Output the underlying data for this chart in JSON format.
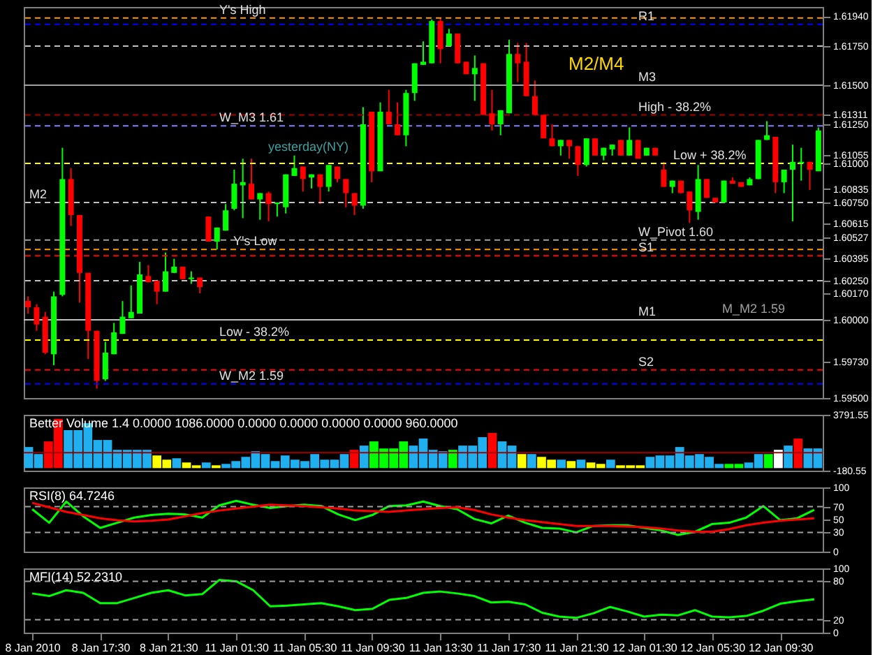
{
  "chart_data": [
    {
      "type": "candlestick",
      "categories": [
        null,
        null,
        null,
        null,
        null,
        null,
        null,
        null,
        null,
        null,
        null,
        null,
        null,
        null,
        null,
        null,
        null,
        null,
        null,
        null,
        null,
        null,
        null,
        null,
        null,
        null,
        null,
        null,
        null,
        null,
        null,
        null,
        null,
        null,
        null,
        null,
        null,
        null,
        null,
        null,
        null,
        null,
        null,
        null,
        null,
        null,
        null,
        null,
        null,
        null,
        null,
        null,
        null,
        null,
        null,
        null,
        null,
        null,
        null,
        null,
        null,
        null,
        null,
        null,
        null,
        null,
        null,
        null,
        null,
        null,
        null,
        null,
        null,
        null,
        null,
        null,
        null,
        null,
        null,
        null,
        null,
        null,
        null,
        null,
        null,
        null,
        null,
        null,
        null,
        null,
        null,
        null,
        null
      ],
      "ohlc": [
        [
          1.6012,
          1.6015,
          1.6004,
          1.6008
        ],
        [
          1.6008,
          1.601,
          1.5993,
          1.5997
        ],
        [
          1.6002,
          1.6005,
          1.5978,
          1.5979
        ],
        [
          1.5978,
          1.6018,
          1.5971,
          1.6015
        ],
        [
          1.6016,
          1.611,
          1.6015,
          1.609
        ],
        [
          1.609,
          1.6097,
          1.606,
          1.6067
        ],
        [
          1.6067,
          1.6067,
          1.6011,
          1.603
        ],
        [
          1.603,
          1.603,
          1.5975,
          1.5993
        ],
        [
          1.5993,
          1.5993,
          1.5956,
          1.5961
        ],
        [
          1.5962,
          1.5986,
          1.5961,
          1.5979
        ],
        [
          1.5978,
          1.5998,
          1.5978,
          1.5992
        ],
        [
          1.5991,
          1.6012,
          1.5991,
          1.6002
        ],
        [
          1.6001,
          1.6022,
          1.6001,
          1.6005
        ],
        [
          1.6004,
          1.6037,
          1.6004,
          1.6029
        ],
        [
          1.6028,
          1.6035,
          1.6024,
          1.6024
        ],
        [
          1.6025,
          1.6025,
          1.601,
          1.6018
        ],
        [
          1.6018,
          1.6043,
          1.6018,
          1.6031
        ],
        [
          1.603,
          1.6039,
          1.603,
          1.6034
        ],
        [
          1.6034,
          1.6034,
          1.6026,
          1.6026
        ],
        [
          1.6026,
          1.6031,
          1.6023,
          1.6027
        ],
        [
          1.6027,
          1.6027,
          1.6017,
          1.6021
        ],
        [
          1.6066,
          1.6066,
          1.605,
          1.605
        ],
        [
          1.605,
          1.6059,
          1.6045,
          1.6059
        ],
        [
          1.6057,
          1.6074,
          1.6057,
          1.607
        ],
        [
          1.6071,
          1.6096,
          1.607,
          1.6087
        ],
        [
          1.6086,
          1.6103,
          1.6065,
          1.6088
        ],
        [
          1.6087,
          1.6103,
          1.6077,
          1.6077
        ],
        [
          1.6077,
          1.6081,
          1.6064,
          1.6081
        ],
        [
          1.6081,
          1.6082,
          1.6063,
          1.6074
        ],
        [
          1.6074,
          1.6075,
          1.6066,
          1.6075
        ],
        [
          1.6072,
          1.6093,
          1.6068,
          1.6093
        ],
        [
          1.6092,
          1.6105,
          1.6092,
          1.6097
        ],
        [
          1.6098,
          1.6098,
          1.6082,
          1.609
        ],
        [
          1.6091,
          1.6093,
          1.6084,
          1.6093
        ],
        [
          1.6093,
          1.6093,
          1.6074,
          1.6085
        ],
        [
          1.6085,
          1.6099,
          1.6082,
          1.6099
        ],
        [
          1.6098,
          1.6098,
          1.6088,
          1.609
        ],
        [
          1.609,
          1.609,
          1.6072,
          1.6081
        ],
        [
          1.6081,
          1.6081,
          1.6067,
          1.6073
        ],
        [
          1.6073,
          1.6136,
          1.6071,
          1.6125
        ],
        [
          1.6133,
          1.6133,
          1.6088,
          1.6095
        ],
        [
          1.6095,
          1.6139,
          1.6095,
          1.6133
        ],
        [
          1.6133,
          1.6147,
          1.6125,
          1.6125
        ],
        [
          1.6125,
          1.6139,
          1.6118,
          1.6118
        ],
        [
          1.6118,
          1.6147,
          1.6111,
          1.6145
        ],
        [
          1.6145,
          1.6164,
          1.614,
          1.6164
        ],
        [
          1.6163,
          1.6178,
          1.6163,
          1.6165
        ],
        [
          1.6164,
          1.6192,
          1.6164,
          1.6191
        ],
        [
          1.6191,
          1.6193,
          1.6164,
          1.6173
        ],
        [
          1.6175,
          1.6186,
          1.6175,
          1.6183
        ],
        [
          1.6183,
          1.6183,
          1.6164,
          1.6164
        ],
        [
          1.6165,
          1.6165,
          1.6157,
          1.6157
        ],
        [
          1.6157,
          1.6169,
          1.614,
          1.6161
        ],
        [
          1.6164,
          1.6164,
          1.6131,
          1.6131
        ],
        [
          1.6132,
          1.6147,
          1.6121,
          1.6125
        ],
        [
          1.6125,
          1.6134,
          1.6118,
          1.6134
        ],
        [
          1.6132,
          1.6179,
          1.6132,
          1.617
        ],
        [
          1.617,
          1.6177,
          1.6152,
          1.6164
        ],
        [
          1.6165,
          1.6177,
          1.6143,
          1.6143
        ],
        [
          1.6143,
          1.6153,
          1.6131,
          1.6131
        ],
        [
          1.6131,
          1.6131,
          1.6116,
          1.6116
        ],
        [
          1.6116,
          1.6125,
          1.6111,
          1.6111
        ],
        [
          1.6111,
          1.6115,
          1.6105,
          1.6115
        ],
        [
          1.6115,
          1.6115,
          1.6103,
          1.6111
        ],
        [
          1.6111,
          1.6111,
          1.6092,
          1.6099
        ],
        [
          1.6099,
          1.6116,
          1.6098,
          1.6116
        ],
        [
          1.6116,
          1.6116,
          1.6105,
          1.6105
        ],
        [
          1.6105,
          1.611,
          1.6102,
          1.611
        ],
        [
          1.6109,
          1.6112,
          1.6105,
          1.6112
        ],
        [
          1.6115,
          1.6115,
          1.6105,
          1.6105
        ],
        [
          1.6105,
          1.6123,
          1.6105,
          1.6115
        ],
        [
          1.6115,
          1.6115,
          1.6103,
          1.6103
        ],
        [
          1.6105,
          1.611,
          1.6105,
          1.611
        ],
        [
          1.611,
          1.611,
          1.6105,
          1.6105
        ],
        [
          1.6096,
          1.6101,
          1.6085,
          1.6085
        ],
        [
          1.6085,
          1.6089,
          1.6081,
          1.6089
        ],
        [
          1.6089,
          1.6089,
          1.6081,
          1.6081
        ],
        [
          1.6082,
          1.6082,
          1.6062,
          1.607
        ],
        [
          1.6069,
          1.6099,
          1.6064,
          1.609
        ],
        [
          1.609,
          1.609,
          1.6078,
          1.6078
        ],
        [
          1.6078,
          1.6078,
          1.6075,
          1.6075
        ],
        [
          1.6075,
          1.6089,
          1.6075,
          1.6089
        ],
        [
          1.6089,
          1.6091,
          1.6087,
          1.6087
        ],
        [
          1.6088,
          1.6088,
          1.6085,
          1.6085
        ],
        [
          1.6086,
          1.6091,
          1.6086,
          1.609
        ],
        [
          1.609,
          1.6115,
          1.609,
          1.6115
        ],
        [
          1.6115,
          1.6127,
          1.6115,
          1.6118
        ],
        [
          1.6117,
          1.6117,
          1.6081,
          1.6088
        ],
        [
          1.6088,
          1.6096,
          1.6081,
          1.6096
        ],
        [
          1.6096,
          1.6112,
          1.6063,
          1.6101
        ],
        [
          1.61,
          1.611,
          1.6089,
          1.6101
        ],
        [
          1.6101,
          1.6101,
          1.6083,
          1.6096
        ],
        [
          1.6095,
          1.6123,
          1.6095,
          1.6121
        ]
      ],
      "colors": [
        "#ff0000",
        "#ff0000",
        "#ff0000",
        "#00ff00",
        "#00ff00",
        "#ff0000",
        "#ff0000",
        "#ff0000",
        "#ff0000",
        "#00ff00",
        "#00ff00",
        "#00ff00",
        "#00ff00",
        "#00ff00",
        "#ff0000",
        "#ff0000",
        "#00ff00",
        "#00ff00",
        "#ff0000",
        "#00ff00",
        "#ff0000",
        "#ff0000",
        "#00ff00",
        "#00ff00",
        "#00ff00",
        "#00ff00",
        "#ff0000",
        "#00ff00",
        "#ff0000",
        "#00ff00",
        "#00ff00",
        "#00ff00",
        "#ff0000",
        "#00ff00",
        "#ff0000",
        "#00ff00",
        "#ff0000",
        "#ff0000",
        "#ff0000",
        "#00ff00",
        "#ff0000",
        "#00ff00",
        "#ff0000",
        "#ff0000",
        "#00ff00",
        "#00ff00",
        "#00ff00",
        "#00ff00",
        "#ff0000",
        "#00ff00",
        "#ff0000",
        "#ff0000",
        "#00ff00",
        "#ff0000",
        "#ff0000",
        "#00ff00",
        "#00ff00",
        "#ff0000",
        "#ff0000",
        "#ff0000",
        "#ff0000",
        "#ff0000",
        "#00ff00",
        "#ff0000",
        "#ff0000",
        "#00ff00",
        "#ff0000",
        "#00ff00",
        "#00ff00",
        "#ff0000",
        "#00ff00",
        "#ff0000",
        "#00ff00",
        "#ff0000",
        "#ff0000",
        "#00ff00",
        "#ff0000",
        "#ff0000",
        "#00ff00",
        "#ff0000",
        "#ff0000",
        "#00ff00",
        "#ff0000",
        "#ff0000",
        "#00ff00",
        "#00ff00",
        "#00ff00",
        "#ff0000",
        "#00ff00",
        "#00ff00",
        "#00ff00",
        "#ff0000",
        "#00ff00"
      ],
      "ylim": [
        1.595,
        1.62
      ],
      "yticks": [
        {
          "value": 1.6194,
          "label": "1.61940"
        },
        {
          "value": 1.6175,
          "label": "1.61750"
        },
        {
          "value": 1.615,
          "label": "1.61500"
        },
        {
          "value": 1.61311,
          "label": "1.61311"
        },
        {
          "value": 1.6125,
          "label": "1.61250"
        },
        {
          "value": 1.61055,
          "label": "1.61055"
        },
        {
          "value": 1.61,
          "label": "1.61000"
        },
        {
          "value": 1.60835,
          "label": "1.60835"
        },
        {
          "value": 1.6075,
          "label": "1.60750"
        },
        {
          "value": 1.60615,
          "label": "1.60615"
        },
        {
          "value": 1.60527,
          "label": "1.60527"
        },
        {
          "value": 1.60395,
          "label": "1.60395"
        },
        {
          "value": 1.6025,
          "label": "1.60250"
        },
        {
          "value": 1.6017,
          "label": "1.60170"
        },
        {
          "value": 1.6,
          "label": "1.60000"
        },
        {
          "value": 1.5973,
          "label": "1.59730"
        },
        {
          "value": 1.595,
          "label": "1.59500"
        }
      ],
      "ref_lines": [
        {
          "axis": "y",
          "value": 1.6193,
          "label": "Y's High",
          "color": "#ff9900",
          "line_style": "dashed"
        },
        {
          "axis": "y",
          "value": 1.6189,
          "label": "R1",
          "color": "#0000ff",
          "line_style": "dashed"
        },
        {
          "axis": "y",
          "value": 1.6175,
          "label": null,
          "color": "#c0c0c0",
          "line_style": "dashed"
        },
        {
          "axis": "y",
          "value": 1.615,
          "label": "M3",
          "color": "#a0a0a0",
          "line_style": "solid"
        },
        {
          "axis": "y",
          "value": 1.6131,
          "label": "High - 38.2%",
          "color": "#a00000",
          "line_style": "dashed"
        },
        {
          "axis": "y",
          "value": 1.6124,
          "label": "W_M3 1.61",
          "color": "#8080ff",
          "line_style": "dashed"
        },
        {
          "axis": "y",
          "value": 1.61,
          "label": "Low + 38.2%",
          "color": "#ffff00",
          "line_style": "dashed"
        },
        {
          "axis": "y",
          "value": 1.6075,
          "label": "M2",
          "color": "#c0c0c0",
          "line_style": "dashed"
        },
        {
          "axis": "y",
          "value": 1.6051,
          "label": "W_Pivot 1.60",
          "color": "#a0a0a0",
          "line_style": "dashed"
        },
        {
          "axis": "y",
          "value": 1.6045,
          "label": "Y's Low",
          "color": "#ff9900",
          "line_style": "dashed"
        },
        {
          "axis": "y",
          "value": 1.6041,
          "label": "S1",
          "color": "#ff0000",
          "line_style": "dashed"
        },
        {
          "axis": "y",
          "value": 1.6025,
          "label": null,
          "color": "#c0c0c0",
          "line_style": "dashed"
        },
        {
          "axis": "y",
          "value": 1.6,
          "label": "M1",
          "color": "#c0c0c0",
          "line_style": "solid"
        },
        {
          "axis": "y",
          "value": 1.5987,
          "label": "Low - 38.2%",
          "color": "#ffff00",
          "line_style": "dashed"
        },
        {
          "axis": "y",
          "value": 1.5968,
          "label": "S2",
          "color": "#ff0000",
          "line_style": "dashed"
        },
        {
          "axis": "y",
          "value": 1.5959,
          "label": "W_M2 1.59",
          "color": "#0000ff",
          "line_style": "dashed"
        }
      ],
      "annotations": [
        "M2/M4",
        "yesterday(NY)",
        "M_M2 1.59"
      ],
      "tick_labels": "y"
    },
    {
      "type": "bar",
      "title": "Better Volume 1.4 0.0000 1086.0000 0.0000 0.0000 0.0000 0.0000 960.0000",
      "categories": [
        null,
        null,
        null,
        null,
        null,
        null,
        null,
        null,
        null,
        null,
        null,
        null,
        null,
        null,
        null,
        null,
        null,
        null,
        null,
        null,
        null,
        null,
        null,
        null,
        null,
        null,
        null,
        null,
        null,
        null,
        null,
        null,
        null,
        null,
        null,
        null,
        null,
        null,
        null,
        null,
        null,
        null,
        null,
        null,
        null,
        null,
        null,
        null,
        null,
        null,
        null,
        null,
        null,
        null,
        null,
        null,
        null,
        null,
        null,
        null,
        null,
        null,
        null,
        null,
        null,
        null,
        null,
        null,
        null,
        null,
        null,
        null,
        null,
        null,
        null,
        null,
        null,
        null,
        null,
        null,
        null
      ],
      "values": [
        1500,
        1000,
        1900,
        3500,
        2700,
        2700,
        3200,
        2000,
        2000,
        1300,
        1300,
        1300,
        1300,
        900,
        600,
        700,
        400,
        200,
        400,
        200,
        300,
        500,
        800,
        1200,
        1000,
        500,
        900,
        600,
        500,
        1000,
        600,
        600,
        1000,
        1300,
        1600,
        1900,
        1400,
        1400,
        1900,
        1600,
        2100,
        1300,
        1200,
        1300,
        1600,
        1600,
        2200,
        2500,
        1900,
        1600,
        1000,
        1000,
        800,
        600,
        600,
        500,
        600,
        400,
        300,
        600,
        200,
        200,
        200,
        800,
        900,
        900,
        1500,
        900,
        1000,
        800,
        300,
        300,
        300,
        400,
        1000,
        1000,
        1300,
        1600,
        2100,
        1400,
        1400
      ],
      "colors": [
        "#20b0f0",
        "#20b0f0",
        "#ff0000",
        "#ff0000",
        "#20b0f0",
        "#20b0f0",
        "#20b0f0",
        "#20b0f0",
        "#20b0f0",
        "#20b0f0",
        "#20b0f0",
        "#20b0f0",
        "#20b0f0",
        "#ffff00",
        "#ffff00",
        "#20b0f0",
        "#ffff00",
        "#ffff00",
        "#20b0f0",
        "#ffff00",
        "#20b0f0",
        "#20b0f0",
        "#20b0f0",
        "#20b0f0",
        "#20b0f0",
        "#20b0f0",
        "#20b0f0",
        "#20b0f0",
        "#20b0f0",
        "#20b0f0",
        "#20b0f0",
        "#20b0f0",
        "#20b0f0",
        "#ff0000",
        "#20b0f0",
        "#00ff00",
        "#00ff00",
        "#00ff00",
        "#00ff00",
        "#20b0f0",
        "#20b0f0",
        "#20b0f0",
        "#20b0f0",
        "#00ff00",
        "#20b0f0",
        "#20b0f0",
        "#20b0f0",
        "#ff0000",
        "#20b0f0",
        "#20b0f0",
        "#ffff00",
        "#20b0f0",
        "#ffff00",
        "#ffff00",
        "#20b0f0",
        "#ffff00",
        "#20b0f0",
        "#ffff00",
        "#ffff00",
        "#20b0f0",
        "#ffff00",
        "#ffff00",
        "#ffff00",
        "#20b0f0",
        "#20b0f0",
        "#20b0f0",
        "#20b0f0",
        "#20b0f0",
        "#20b0f0",
        "#20b0f0",
        "#20b0f0",
        "#00ff00",
        "#00ff00",
        "#20b0f0",
        "#20b0f0",
        "#00ff00",
        "#ffffff",
        "#20b0f0",
        "#ff0000",
        "#20b0f0",
        "#20b0f0"
      ],
      "ylim": [
        -180.55,
        3791.55
      ],
      "yticks": [
        {
          "value": -180.55,
          "label": "-180.55"
        },
        {
          "value": 3791.55,
          "label": "3791.55"
        }
      ],
      "ref_lines": [
        {
          "axis": "y",
          "value": 1100,
          "label": null,
          "color": "#a00000",
          "line_style": "solid"
        }
      ],
      "tick_labels": "y"
    },
    {
      "type": "line",
      "title": "RSI(8) 64.7246",
      "categories": [
        null,
        null,
        null,
        null,
        null,
        null,
        null,
        null,
        null,
        null,
        null,
        null,
        null,
        null,
        null,
        null,
        null,
        null,
        null,
        null,
        null,
        null,
        null,
        null,
        null,
        null,
        null,
        null,
        null,
        null,
        null,
        null,
        null,
        null,
        null,
        null,
        null,
        null,
        null,
        null,
        null,
        null,
        null,
        null,
        null,
        null,
        null
      ],
      "series": [
        {
          "color": "#00ff00",
          "values": [
            66,
            45,
            78,
            55,
            37,
            45,
            53,
            57,
            59,
            58,
            53,
            72,
            79,
            73,
            68,
            71,
            73,
            71,
            58,
            49,
            57,
            71,
            72,
            78,
            71,
            66,
            51,
            44,
            56,
            45,
            37,
            36,
            30,
            40,
            41,
            41,
            37,
            33,
            26,
            31,
            43,
            45,
            53,
            71,
            49,
            52,
            65
          ]
        },
        {
          "color": "#ff0000",
          "values": [
            76,
            69,
            62,
            57,
            52,
            49,
            47,
            48,
            50,
            55,
            60,
            64,
            67,
            70,
            73,
            72,
            71,
            69,
            67,
            64,
            63,
            62,
            64,
            66,
            68,
            69,
            65,
            58,
            53,
            49,
            46,
            43,
            40,
            40,
            40,
            39,
            38,
            36,
            33,
            31,
            31,
            35,
            41,
            45,
            48,
            50,
            52
          ]
        }
      ],
      "ylim": [
        0,
        100
      ],
      "yticks": [
        0,
        30,
        50,
        70,
        100
      ],
      "ref_lines": [
        {
          "axis": "y",
          "value": 70,
          "label": null,
          "color": "#a0a0a0",
          "line_style": "dashed"
        },
        {
          "axis": "y",
          "value": 30,
          "label": null,
          "color": "#a0a0a0",
          "line_style": "dashed"
        }
      ],
      "tick_labels": "y"
    },
    {
      "type": "line",
      "title": "MFI(14) 52.2310",
      "categories": [
        "8 Jan 2010",
        null,
        null,
        null,
        "8 Jan 17:30",
        null,
        null,
        null,
        "8 Jan 21:30",
        null,
        null,
        null,
        "11 Jan 01:30",
        null,
        null,
        null,
        "11 Jan 05:30",
        null,
        null,
        null,
        "11 Jan 09:30",
        null,
        null,
        null,
        "11 Jan 13:30",
        null,
        null,
        null,
        "11 Jan 17:30",
        null,
        null,
        null,
        "11 Jan 21:30",
        null,
        null,
        null,
        "12 Jan 01:30",
        null,
        null,
        null,
        "12 Jan 05:30",
        null,
        null,
        null,
        "12 Jan 09:30",
        null,
        null
      ],
      "series": [
        {
          "color": "#00ff00",
          "values": [
            61,
            57,
            66,
            62,
            46,
            46,
            54,
            62,
            66,
            58,
            60,
            82,
            80,
            66,
            41,
            42,
            44,
            46,
            41,
            35,
            37,
            51,
            54,
            62,
            64,
            61,
            57,
            47,
            48,
            44,
            31,
            25,
            23,
            30,
            40,
            33,
            25,
            28,
            27,
            35,
            25,
            24,
            26,
            34,
            45,
            49,
            52
          ]
        }
      ],
      "ylim": [
        0,
        100
      ],
      "yticks": [
        0,
        20,
        80,
        100
      ],
      "ref_lines": [
        {
          "axis": "y",
          "value": 80,
          "label": null,
          "color": "#a0a0a0",
          "line_style": "dashed"
        },
        {
          "axis": "y",
          "value": 20,
          "label": null,
          "color": "#a0a0a0",
          "line_style": "dashed"
        }
      ]
    }
  ]
}
